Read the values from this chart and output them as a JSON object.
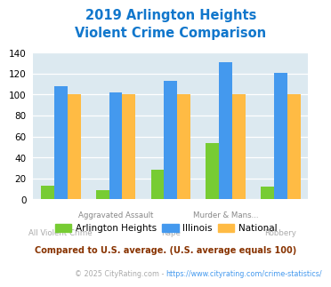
{
  "title": "2019 Arlington Heights\nViolent Crime Comparison",
  "categories": [
    "All Violent Crime",
    "Aggravated Assault",
    "Rape",
    "Murder & Mans...",
    "Robbery"
  ],
  "series": {
    "Arlington Heights": [
      13,
      9,
      28,
      54,
      12
    ],
    "Illinois": [
      108,
      102,
      113,
      131,
      121
    ],
    "National": [
      100,
      100,
      100,
      100,
      100
    ]
  },
  "colors": {
    "Arlington Heights": "#77cc33",
    "Illinois": "#4499ee",
    "National": "#ffbb44"
  },
  "ylim": [
    0,
    140
  ],
  "yticks": [
    0,
    20,
    40,
    60,
    80,
    100,
    120,
    140
  ],
  "title_color": "#1177cc",
  "title_fontsize": 10.5,
  "background_color": "#dce9f0",
  "top_labels": [
    "",
    "Aggravated Assault",
    "",
    "Murder & Mans...",
    ""
  ],
  "bottom_labels": [
    "All Violent Crime",
    "",
    "Rape",
    "",
    "Robbery"
  ],
  "footnote1": "Compared to U.S. average. (U.S. average equals 100)",
  "footnote2": "© 2025 CityRating.com - https://www.cityrating.com/crime-statistics/",
  "footnote1_color": "#883300",
  "footnote2_color": "#aaaaaa",
  "url_color": "#4499ee"
}
